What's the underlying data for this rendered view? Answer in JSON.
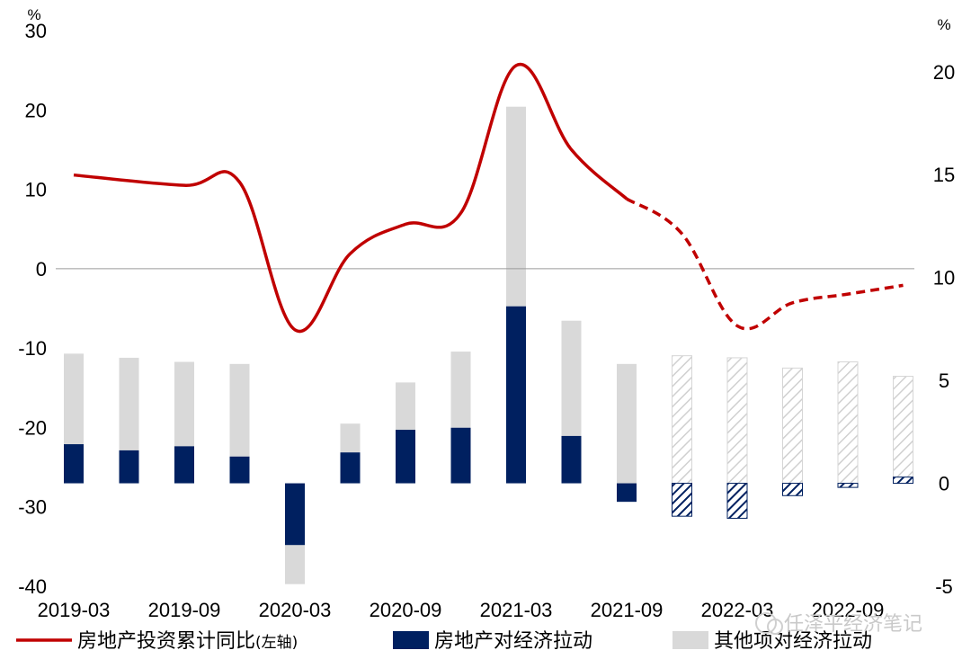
{
  "chart_data": {
    "type": "bar+line",
    "categories": [
      "2019-03",
      "2019-06",
      "2019-09",
      "2019-12",
      "2020-03",
      "2020-06",
      "2020-09",
      "2020-12",
      "2021-03",
      "2021-06",
      "2021-09",
      "2021-12",
      "2022-03",
      "2022-06",
      "2022-09",
      "2022-12"
    ],
    "x_tick_labels": [
      "2019-03",
      "2019-09",
      "2020-03",
      "2020-09",
      "2021-03",
      "2021-09",
      "2022-03",
      "2022-09"
    ],
    "left_axis": {
      "unit": "%",
      "ylim": [
        -40,
        30
      ],
      "ticks": [
        30,
        20,
        10,
        0,
        -10,
        -20,
        -30,
        -40
      ]
    },
    "right_axis": {
      "unit": "%",
      "ylim": [
        -5,
        22
      ],
      "ticks": [
        20,
        15,
        10,
        5,
        0,
        -5
      ]
    },
    "series": [
      {
        "name": "房地产投资累计同比",
        "axis_note": "(左轴)",
        "type": "line",
        "axis": "left",
        "color": "#c00000",
        "x": [
          "2019-03",
          "2019-09",
          "2019-12",
          "2020-03",
          "2020-06",
          "2020-09",
          "2020-12",
          "2021-03",
          "2021-06",
          "2021-09",
          "2021-12",
          "2022-03",
          "2022-06",
          "2022-09",
          "2022-12"
        ],
        "values": [
          11.8,
          10.5,
          10.9,
          -7.7,
          1.9,
          5.6,
          7.0,
          25.6,
          15.0,
          8.8,
          4.4,
          -7.2,
          -4.3,
          -3.2,
          -2.1
        ],
        "dashed_from": "2021-09"
      },
      {
        "name": "房地产对经济拉动",
        "type": "bar",
        "axis": "right",
        "color": "#002060",
        "values": [
          1.9,
          1.6,
          1.8,
          1.3,
          -3.0,
          1.5,
          2.6,
          2.7,
          8.6,
          2.3,
          -0.9,
          -1.6,
          -1.7,
          -0.6,
          -0.2,
          0.3
        ],
        "hatched_from": "2021-12"
      },
      {
        "name": "其他项对经济拉动",
        "type": "bar",
        "axis": "right",
        "color": "#d9d9d9",
        "values": [
          4.4,
          4.5,
          4.1,
          4.5,
          -1.9,
          1.4,
          2.3,
          3.7,
          9.7,
          5.6,
          5.8,
          6.2,
          6.1,
          5.6,
          5.9,
          4.9
        ],
        "hatched_from": "2021-12"
      }
    ]
  },
  "watermark": "任泽平经济笔记"
}
